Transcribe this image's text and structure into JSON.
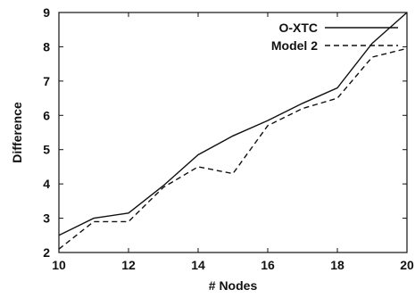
{
  "chart_data": {
    "type": "line",
    "xlabel": "# Nodes",
    "ylabel": "Difference",
    "xlim": [
      10,
      20
    ],
    "ylim": [
      2,
      9
    ],
    "x_ticks": [
      10,
      12,
      14,
      16,
      18,
      20
    ],
    "y_ticks": [
      2,
      3,
      4,
      5,
      6,
      7,
      8,
      9
    ],
    "grid": false,
    "legend_position": "top-right",
    "x": [
      10,
      11,
      12,
      13,
      14,
      15,
      16,
      17,
      18,
      19,
      20
    ],
    "series": [
      {
        "name": "O-XTC",
        "style": "solid",
        "color": "#111111",
        "values": [
          2.5,
          3.0,
          3.15,
          3.95,
          4.85,
          5.4,
          5.85,
          6.35,
          6.8,
          8.1,
          9.0
        ]
      },
      {
        "name": "Model 2",
        "style": "dashed",
        "color": "#111111",
        "values": [
          2.1,
          2.9,
          2.9,
          3.9,
          4.5,
          4.3,
          5.7,
          6.2,
          6.5,
          7.7,
          7.95
        ]
      }
    ]
  }
}
